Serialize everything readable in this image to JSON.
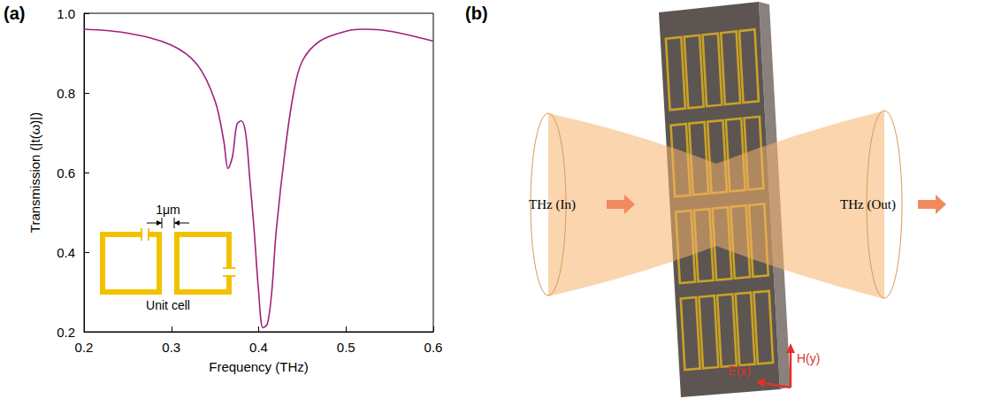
{
  "chart_data": {
    "type": "line",
    "x_label": "Frequency (THz)",
    "y_label": "Transmission (|t(ω)|)",
    "x": [
      0.2,
      0.25,
      0.3,
      0.33,
      0.35,
      0.36,
      0.365,
      0.37,
      0.375,
      0.38,
      0.385,
      0.39,
      0.395,
      0.4,
      0.405,
      0.41,
      0.415,
      0.42,
      0.43,
      0.44,
      0.45,
      0.47,
      0.5,
      0.52,
      0.55,
      0.6
    ],
    "values": [
      0.96,
      0.95,
      0.92,
      0.87,
      0.78,
      0.68,
      0.61,
      0.64,
      0.72,
      0.73,
      0.7,
      0.58,
      0.45,
      0.3,
      0.21,
      0.22,
      0.3,
      0.45,
      0.65,
      0.8,
      0.88,
      0.93,
      0.955,
      0.96,
      0.955,
      0.93
    ],
    "color": "#a0207c",
    "xlim": [
      0.2,
      0.6
    ],
    "xticks": [
      0.2,
      0.3,
      0.4,
      0.5,
      0.6
    ],
    "ylim": [
      0.2,
      1
    ],
    "yticks": [
      0.2,
      0.4,
      0.6,
      0.8,
      {
        "value": 1,
        "label": "1.0"
      }
    ],
    "grid": false,
    "line_style": "solid",
    "marker": "none"
  },
  "panel_labels": [
    "(a)",
    "(b)"
  ],
  "inset": {
    "dimension": "1μm",
    "caption": "Unit cell"
  },
  "diagram": {
    "beam_in": "THz (In)",
    "beam_out": "THz (Out)",
    "magnetic_field": "H(y)",
    "electric_field": "E(x)"
  }
}
